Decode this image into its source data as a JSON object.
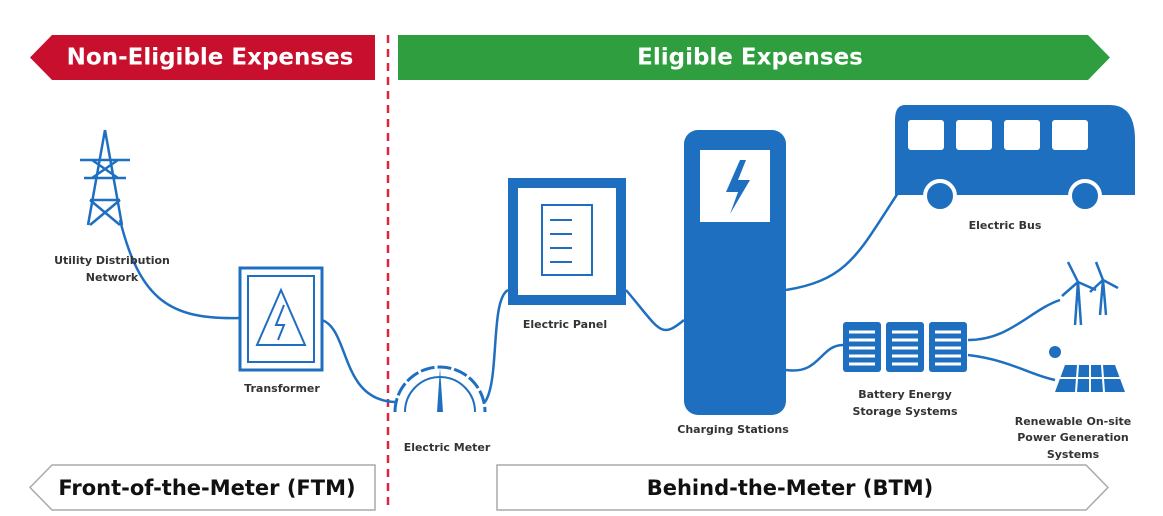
{
  "banners": {
    "non_eligible": "Non-Eligible Expenses",
    "eligible": "Eligible Expenses"
  },
  "nodes": [
    {
      "label_lines": [
        "Utility Distribution",
        "Network"
      ]
    },
    {
      "label_lines": [
        "Transformer"
      ]
    },
    {
      "label_lines": [
        "Electric Meter"
      ]
    },
    {
      "label_lines": [
        "Electric Panel"
      ]
    },
    {
      "label_lines": [
        "Charging Stations"
      ]
    },
    {
      "label_lines": [
        "Electric Bus"
      ]
    },
    {
      "label_lines": [
        "Battery Energy",
        "Storage Systems"
      ]
    },
    {
      "label_lines": [
        "Renewable On-site",
        "Power Generation",
        "Systems"
      ]
    }
  ],
  "footer": {
    "ftm": "Front-of-the-Meter (FTM)",
    "btm": "Behind-the-Meter (BTM)"
  }
}
